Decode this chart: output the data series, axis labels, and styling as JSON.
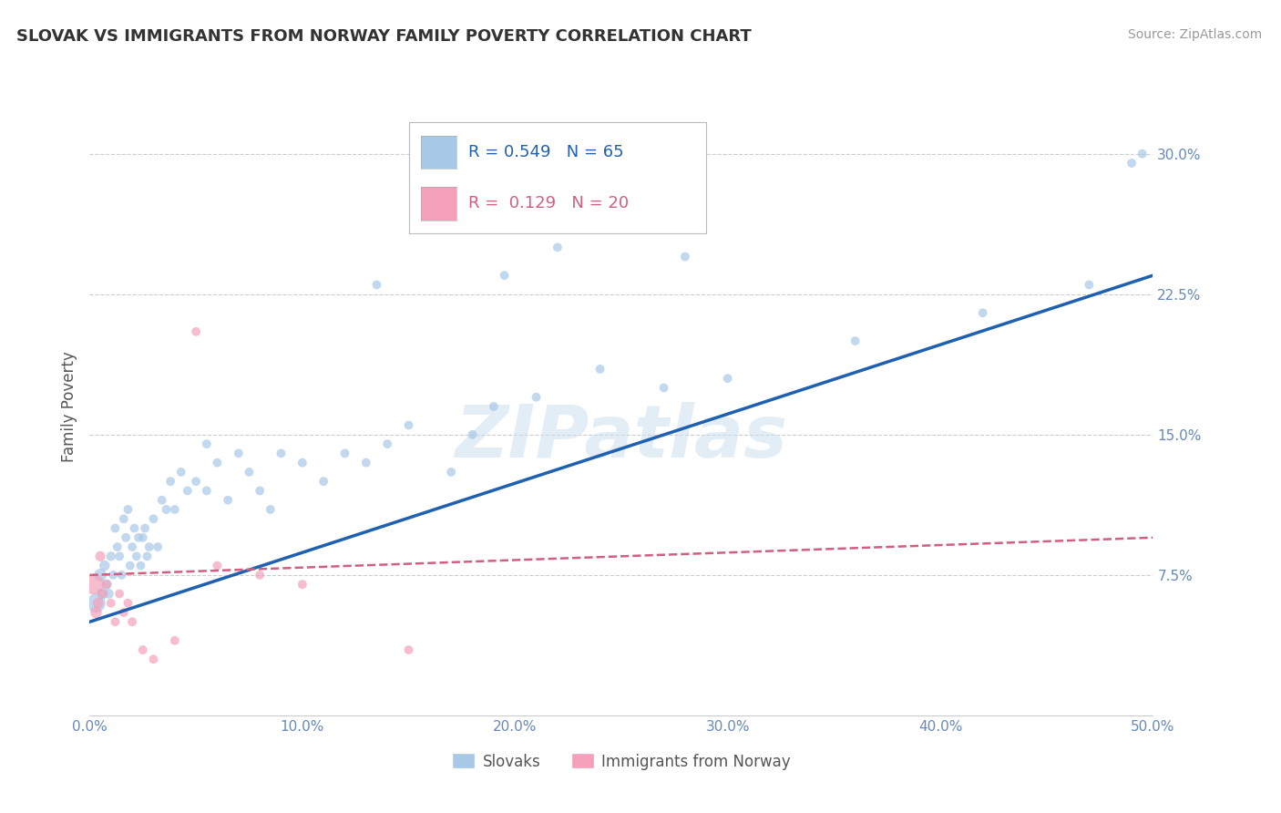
{
  "title": "SLOVAK VS IMMIGRANTS FROM NORWAY FAMILY POVERTY CORRELATION CHART",
  "source": "Source: ZipAtlas.com",
  "ylabel": "Family Poverty",
  "x_tick_labels": [
    "0.0%",
    "10.0%",
    "20.0%",
    "30.0%",
    "40.0%",
    "50.0%"
  ],
  "x_tick_values": [
    0.0,
    10.0,
    20.0,
    30.0,
    40.0,
    50.0
  ],
  "y_tick_labels": [
    "7.5%",
    "15.0%",
    "22.5%",
    "30.0%"
  ],
  "y_tick_values": [
    7.5,
    15.0,
    22.5,
    30.0
  ],
  "xlim": [
    0,
    50
  ],
  "ylim": [
    0,
    33
  ],
  "legend1_label": "Slovaks",
  "legend2_label": "Immigrants from Norway",
  "r1": "0.549",
  "n1": "65",
  "r2": "0.129",
  "n2": "20",
  "blue_color": "#a8c8e8",
  "pink_color": "#f4a0b8",
  "blue_line_color": "#2060b0",
  "pink_line_color": "#d06080",
  "watermark_text": "ZIPatlas",
  "title_color": "#333333",
  "axis_label_color": "#6688bb",
  "blue_line_x0": 0,
  "blue_line_y0": 5.0,
  "blue_line_x1": 50,
  "blue_line_y1": 23.5,
  "pink_line_x0": 0,
  "pink_line_y0": 7.5,
  "pink_line_x1": 50,
  "pink_line_y1": 9.5,
  "blue_scatter_x": [
    0.3,
    0.5,
    0.6,
    0.7,
    0.8,
    0.9,
    1.0,
    1.1,
    1.2,
    1.3,
    1.4,
    1.5,
    1.6,
    1.7,
    1.8,
    1.9,
    2.0,
    2.1,
    2.2,
    2.3,
    2.4,
    2.5,
    2.6,
    2.7,
    2.8,
    3.0,
    3.2,
    3.4,
    3.6,
    3.8,
    4.0,
    4.3,
    4.6,
    5.0,
    5.5,
    6.0,
    6.5,
    7.0,
    7.5,
    8.0,
    9.0,
    10.0,
    11.0,
    12.0,
    13.0,
    14.0,
    15.0,
    17.0,
    18.0,
    19.0,
    21.0,
    24.0,
    27.0,
    30.0,
    36.0,
    42.0,
    47.0,
    49.0,
    5.5,
    8.5,
    13.5,
    19.5,
    28.0,
    22.0,
    49.5
  ],
  "blue_scatter_y": [
    6.0,
    7.5,
    6.5,
    8.0,
    7.0,
    6.5,
    8.5,
    7.5,
    10.0,
    9.0,
    8.5,
    7.5,
    10.5,
    9.5,
    11.0,
    8.0,
    9.0,
    10.0,
    8.5,
    9.5,
    8.0,
    9.5,
    10.0,
    8.5,
    9.0,
    10.5,
    9.0,
    11.5,
    11.0,
    12.5,
    11.0,
    13.0,
    12.0,
    12.5,
    12.0,
    13.5,
    11.5,
    14.0,
    13.0,
    12.0,
    14.0,
    13.5,
    12.5,
    14.0,
    13.5,
    14.5,
    15.5,
    13.0,
    15.0,
    16.5,
    17.0,
    18.5,
    17.5,
    18.0,
    20.0,
    21.5,
    23.0,
    29.5,
    14.5,
    11.0,
    23.0,
    23.5,
    24.5,
    25.0,
    30.0
  ],
  "blue_scatter_sizes": [
    220,
    100,
    80,
    70,
    65,
    60,
    55,
    50,
    50,
    50,
    50,
    50,
    50,
    50,
    50,
    50,
    50,
    50,
    50,
    50,
    50,
    50,
    50,
    50,
    50,
    50,
    50,
    50,
    50,
    50,
    50,
    50,
    50,
    50,
    50,
    50,
    50,
    50,
    50,
    50,
    50,
    50,
    50,
    50,
    50,
    50,
    50,
    50,
    50,
    50,
    50,
    50,
    50,
    50,
    50,
    50,
    50,
    50,
    50,
    50,
    50,
    50,
    50,
    50,
    50
  ],
  "pink_scatter_x": [
    0.2,
    0.3,
    0.4,
    0.5,
    0.6,
    0.8,
    1.0,
    1.2,
    1.4,
    1.6,
    1.8,
    2.0,
    2.5,
    3.0,
    4.0,
    5.0,
    6.0,
    8.0,
    10.0,
    15.0
  ],
  "pink_scatter_y": [
    7.0,
    5.5,
    6.0,
    8.5,
    6.5,
    7.0,
    6.0,
    5.0,
    6.5,
    5.5,
    6.0,
    5.0,
    3.5,
    3.0,
    4.0,
    20.5,
    8.0,
    7.5,
    7.0,
    3.5
  ],
  "pink_scatter_sizes": [
    260,
    80,
    70,
    65,
    55,
    50,
    50,
    50,
    50,
    50,
    50,
    50,
    50,
    50,
    50,
    50,
    50,
    50,
    50,
    50
  ]
}
